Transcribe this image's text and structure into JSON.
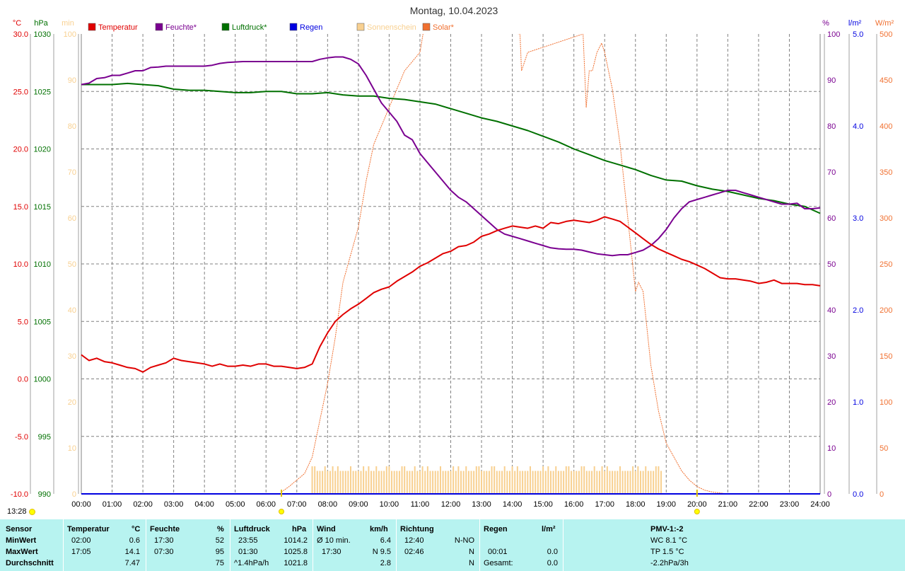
{
  "title": "Montag, 10.04.2023",
  "colors": {
    "temperature": "#e00000",
    "humidity": "#7a0090",
    "pressure": "#007000",
    "rain": "#0000e0",
    "sunshine": "#f8d090",
    "solar": "#f07030",
    "grid": "#808080",
    "panel": "#b7f3f0"
  },
  "chart_data": {
    "type": "line",
    "title": "Montag, 10.04.2023",
    "xlim": [
      0,
      24
    ],
    "x_ticks": [
      "00:00",
      "01:00",
      "02:00",
      "03:00",
      "04:00",
      "05:00",
      "06:00",
      "07:00",
      "08:00",
      "09:00",
      "10:00",
      "11:00",
      "12:00",
      "13:00",
      "14:00",
      "15:00",
      "16:00",
      "17:00",
      "18:00",
      "19:00",
      "20:00",
      "21:00",
      "22:00",
      "23:00",
      "24:00"
    ],
    "grid": true,
    "legend_position": "top",
    "axes": {
      "temperature": {
        "unit": "°C",
        "lim": [
          -10,
          30
        ],
        "ticks": [
          "-10.0",
          "-5.0",
          "0.0",
          "5.0",
          "10.0",
          "15.0",
          "20.0",
          "25.0",
          "30.0"
        ]
      },
      "pressure": {
        "unit": "hPa",
        "lim": [
          990,
          1030
        ],
        "ticks": [
          "990",
          "995",
          "1000",
          "1005",
          "1010",
          "1015",
          "1020",
          "1025",
          "1030"
        ]
      },
      "sunshine": {
        "unit": "min",
        "lim": [
          0,
          100
        ],
        "ticks": [
          "0",
          "10",
          "20",
          "30",
          "40",
          "50",
          "60",
          "70",
          "80",
          "90",
          "100"
        ]
      },
      "humidity": {
        "unit": "%",
        "lim": [
          0,
          100
        ],
        "ticks": [
          "0",
          "10",
          "20",
          "30",
          "40",
          "50",
          "60",
          "70",
          "80",
          "90",
          "100"
        ]
      },
      "rain": {
        "unit": "l/m²",
        "lim": [
          0,
          5
        ],
        "ticks": [
          "0.0",
          "1.0",
          "2.0",
          "3.0",
          "4.0",
          "5.0"
        ]
      },
      "solar": {
        "unit": "W/m²",
        "lim": [
          0,
          500
        ],
        "ticks": [
          "0",
          "50",
          "100",
          "150",
          "200",
          "250",
          "300",
          "350",
          "400",
          "450",
          "500"
        ]
      }
    },
    "series": [
      {
        "name": "Temperatur",
        "axis": "temperature",
        "x": [
          0,
          0.25,
          0.5,
          0.75,
          1,
          1.25,
          1.5,
          1.75,
          2,
          2.25,
          2.5,
          2.75,
          3,
          3.25,
          3.5,
          3.75,
          4,
          4.25,
          4.5,
          4.75,
          5,
          5.25,
          5.5,
          5.75,
          6,
          6.25,
          6.5,
          6.75,
          7,
          7.25,
          7.5,
          7.75,
          8,
          8.25,
          8.5,
          8.75,
          9,
          9.25,
          9.5,
          9.75,
          10,
          10.25,
          10.5,
          10.75,
          11,
          11.25,
          11.5,
          11.75,
          12,
          12.25,
          12.5,
          12.75,
          13,
          13.25,
          13.5,
          13.75,
          14,
          14.25,
          14.5,
          14.75,
          15,
          15.25,
          15.5,
          15.75,
          16,
          16.25,
          16.5,
          16.75,
          17,
          17.25,
          17.5,
          17.75,
          18,
          18.25,
          18.5,
          18.75,
          19,
          19.25,
          19.5,
          19.75,
          20,
          20.25,
          20.5,
          20.75,
          21,
          21.25,
          21.5,
          21.75,
          22,
          22.25,
          22.5,
          22.75,
          23,
          23.25,
          23.5,
          23.75,
          24
        ],
        "values": [
          2.1,
          1.6,
          1.8,
          1.5,
          1.4,
          1.2,
          1.0,
          0.9,
          0.6,
          1.0,
          1.2,
          1.4,
          1.8,
          1.6,
          1.5,
          1.4,
          1.3,
          1.1,
          1.3,
          1.1,
          1.1,
          1.2,
          1.1,
          1.3,
          1.3,
          1.1,
          1.1,
          1.0,
          0.9,
          1.0,
          1.3,
          2.8,
          4.0,
          5.0,
          5.6,
          6.1,
          6.5,
          7.0,
          7.5,
          7.8,
          8.0,
          8.5,
          8.9,
          9.3,
          9.8,
          10.1,
          10.5,
          10.9,
          11.1,
          11.5,
          11.6,
          11.9,
          12.4,
          12.6,
          12.9,
          13.1,
          13.3,
          13.2,
          13.1,
          13.3,
          13.1,
          13.6,
          13.5,
          13.7,
          13.8,
          13.7,
          13.6,
          13.8,
          14.1,
          13.9,
          13.7,
          13.2,
          12.7,
          12.2,
          11.7,
          11.3,
          11.0,
          10.7,
          10.4,
          10.2,
          9.9,
          9.6,
          9.2,
          8.8,
          8.7,
          8.7,
          8.6,
          8.5,
          8.3,
          8.4,
          8.6,
          8.3,
          8.3,
          8.3,
          8.2,
          8.2,
          8.1
        ]
      },
      {
        "name": "Feuchte*",
        "axis": "humidity",
        "x": [
          0,
          0.25,
          0.5,
          0.75,
          1,
          1.25,
          1.5,
          1.75,
          2,
          2.25,
          2.5,
          2.75,
          3,
          3.25,
          3.5,
          3.75,
          4,
          4.25,
          4.5,
          4.75,
          5,
          5.25,
          5.5,
          5.75,
          6,
          6.25,
          6.5,
          6.75,
          7,
          7.25,
          7.5,
          7.75,
          8,
          8.25,
          8.5,
          8.75,
          9,
          9.25,
          9.5,
          9.75,
          10,
          10.25,
          10.5,
          10.75,
          11,
          11.25,
          11.5,
          11.75,
          12,
          12.25,
          12.5,
          12.75,
          13,
          13.25,
          13.5,
          13.75,
          14,
          14.25,
          14.5,
          14.75,
          15,
          15.25,
          15.5,
          15.75,
          16,
          16.25,
          16.5,
          16.75,
          17,
          17.25,
          17.5,
          17.75,
          18,
          18.25,
          18.5,
          18.75,
          19,
          19.25,
          19.5,
          19.75,
          20,
          20.25,
          20.5,
          20.75,
          21,
          21.25,
          21.5,
          21.75,
          22,
          22.25,
          22.5,
          22.75,
          23,
          23.25,
          23.5,
          23.75,
          24
        ],
        "values": [
          89,
          89.3,
          90.3,
          90.5,
          91,
          91,
          91.5,
          92,
          92,
          92.7,
          92.8,
          93,
          93,
          93,
          93,
          93,
          93,
          93.2,
          93.6,
          93.8,
          93.9,
          94,
          94,
          94,
          94,
          94,
          94,
          94,
          94,
          94,
          94,
          94.5,
          94.8,
          95,
          95,
          94.5,
          93.5,
          91,
          88,
          85,
          83,
          81,
          78,
          77,
          74,
          72,
          70,
          68,
          66,
          64.5,
          63.5,
          62,
          60.5,
          59,
          57.5,
          56.5,
          56,
          55.5,
          55,
          54.5,
          54,
          53.5,
          53.3,
          53.2,
          53.2,
          53,
          52.6,
          52.2,
          52,
          51.8,
          52,
          52,
          52.5,
          53,
          54,
          55.5,
          57.5,
          60,
          62,
          63.5,
          64,
          64.5,
          65,
          65.5,
          66,
          66,
          65.5,
          65,
          64.5,
          64,
          63.5,
          63,
          63,
          63.2,
          62,
          62,
          62.2
        ]
      },
      {
        "name": "Luftdruck*",
        "axis": "pressure",
        "x": [
          0,
          0.5,
          1,
          1.5,
          2,
          2.5,
          3,
          3.5,
          4,
          4.5,
          5,
          5.5,
          6,
          6.5,
          7,
          7.5,
          8,
          8.5,
          9,
          9.5,
          10,
          10.5,
          11,
          11.5,
          12,
          12.5,
          13,
          13.5,
          14,
          14.5,
          15,
          15.5,
          16,
          16.5,
          17,
          17.5,
          18,
          18.5,
          19,
          19.5,
          20,
          20.5,
          21,
          21.5,
          22,
          22.5,
          23,
          23.5,
          24
        ],
        "values": [
          1025.6,
          1025.6,
          1025.6,
          1025.7,
          1025.6,
          1025.5,
          1025.2,
          1025.1,
          1025.1,
          1025.0,
          1024.9,
          1024.9,
          1025.0,
          1025.0,
          1024.8,
          1024.8,
          1024.9,
          1024.7,
          1024.6,
          1024.6,
          1024.4,
          1024.3,
          1024.1,
          1023.9,
          1023.5,
          1023.1,
          1022.7,
          1022.4,
          1022.0,
          1021.6,
          1021.1,
          1020.6,
          1020.0,
          1019.5,
          1019.0,
          1018.6,
          1018.2,
          1017.7,
          1017.3,
          1017.2,
          1016.8,
          1016.5,
          1016.3,
          1016.0,
          1015.7,
          1015.5,
          1015.2,
          1015.0,
          1014.4
        ]
      },
      {
        "name": "Regen",
        "axis": "rain",
        "x": [
          0,
          24
        ],
        "values": [
          0.0,
          0.0
        ]
      },
      {
        "name": "Sonnenschein",
        "axis": "sunshine",
        "type": "bar",
        "x_start": 7.5,
        "x_end": 18.85,
        "typical_value": 5,
        "peak_value": 6
      },
      {
        "name": "Solar*",
        "axis": "solar",
        "x": [
          6.5,
          6.75,
          7,
          7.25,
          7.5,
          7.75,
          8,
          8.25,
          8.5,
          8.75,
          9,
          9.25,
          9.5,
          9.75,
          10,
          10.25,
          10.5,
          10.75,
          11,
          11.1,
          11.25,
          11.4,
          11.5,
          13.2,
          14.2,
          14.25,
          14.3,
          14.5,
          16.3,
          16.4,
          16.5,
          16.6,
          16.75,
          16.9,
          17.0,
          17.25,
          17.5,
          17.75,
          18.0,
          18.1,
          18.25,
          18.5,
          18.75,
          19.0,
          19.25,
          19.5,
          19.75,
          20.0,
          20.25,
          20.5,
          20.75,
          21.0
        ],
        "values": [
          2,
          8,
          15,
          22,
          40,
          80,
          120,
          170,
          230,
          260,
          290,
          340,
          380,
          400,
          420,
          440,
          460,
          470,
          480,
          500,
          520,
          540,
          560,
          560,
          500,
          500,
          460,
          480,
          500,
          420,
          460,
          460,
          480,
          490,
          480,
          440,
          380,
          300,
          220,
          230,
          220,
          140,
          90,
          55,
          40,
          25,
          15,
          8,
          4,
          2,
          1,
          0
        ]
      }
    ]
  },
  "legend": [
    {
      "key": "temperature",
      "label": "Temperatur"
    },
    {
      "key": "humidity",
      "label": "Feuchte*"
    },
    {
      "key": "pressure",
      "label": "Luftdruck*"
    },
    {
      "key": "rain",
      "label": "Regen"
    },
    {
      "key": "sunshine",
      "label": "Sonnenschein"
    },
    {
      "key": "solar",
      "label": "Solar*"
    }
  ],
  "markers": {
    "sunrise": 6.5,
    "sunset": 20.0
  },
  "timestamp": "13:28",
  "stats": {
    "sensor": {
      "header": "Sensor",
      "rows": [
        "MinWert",
        "MaxWert",
        "Durchschnitt"
      ]
    },
    "temperature": {
      "header": "Temperatur",
      "unit": "°C",
      "min_time": "02:00",
      "min": "0.6",
      "max_time": "17:05",
      "max": "14.1",
      "avg": "7.47"
    },
    "humidity": {
      "header": "Feuchte",
      "unit": "%",
      "min_time": "17:30",
      "min": "52",
      "max_time": "07:30",
      "max": "95",
      "avg": "75"
    },
    "pressure": {
      "header": "Luftdruck",
      "unit": "hPa",
      "min_time": "23:55",
      "min": "1014.2",
      "max_time": "01:30",
      "max": "1025.8",
      "trend": "^1.4hPa/h",
      "avg": "1021.8"
    },
    "wind": {
      "header": "Wind",
      "unit": "km/h",
      "min_label": "Ø 10 min.",
      "min": "6.4",
      "max_time": "17:30",
      "max": "N 9.5",
      "avg": "2.8"
    },
    "direction": {
      "header": "Richtung",
      "min_time": "12:40",
      "min": "N-NO",
      "max_time": "02:46",
      "max": "N",
      "avg": "N"
    },
    "rain": {
      "header": "Regen",
      "unit": "l/m²",
      "max_time": "00:01",
      "max": "0.0",
      "total_label": "Gesamt:",
      "total": "0.0"
    },
    "pmv": {
      "header": "PMV-1:-2",
      "line1": "WC 8.1 °C",
      "line2": "TP 1.5 °C",
      "line3": "-2.2hPa/3h"
    }
  }
}
